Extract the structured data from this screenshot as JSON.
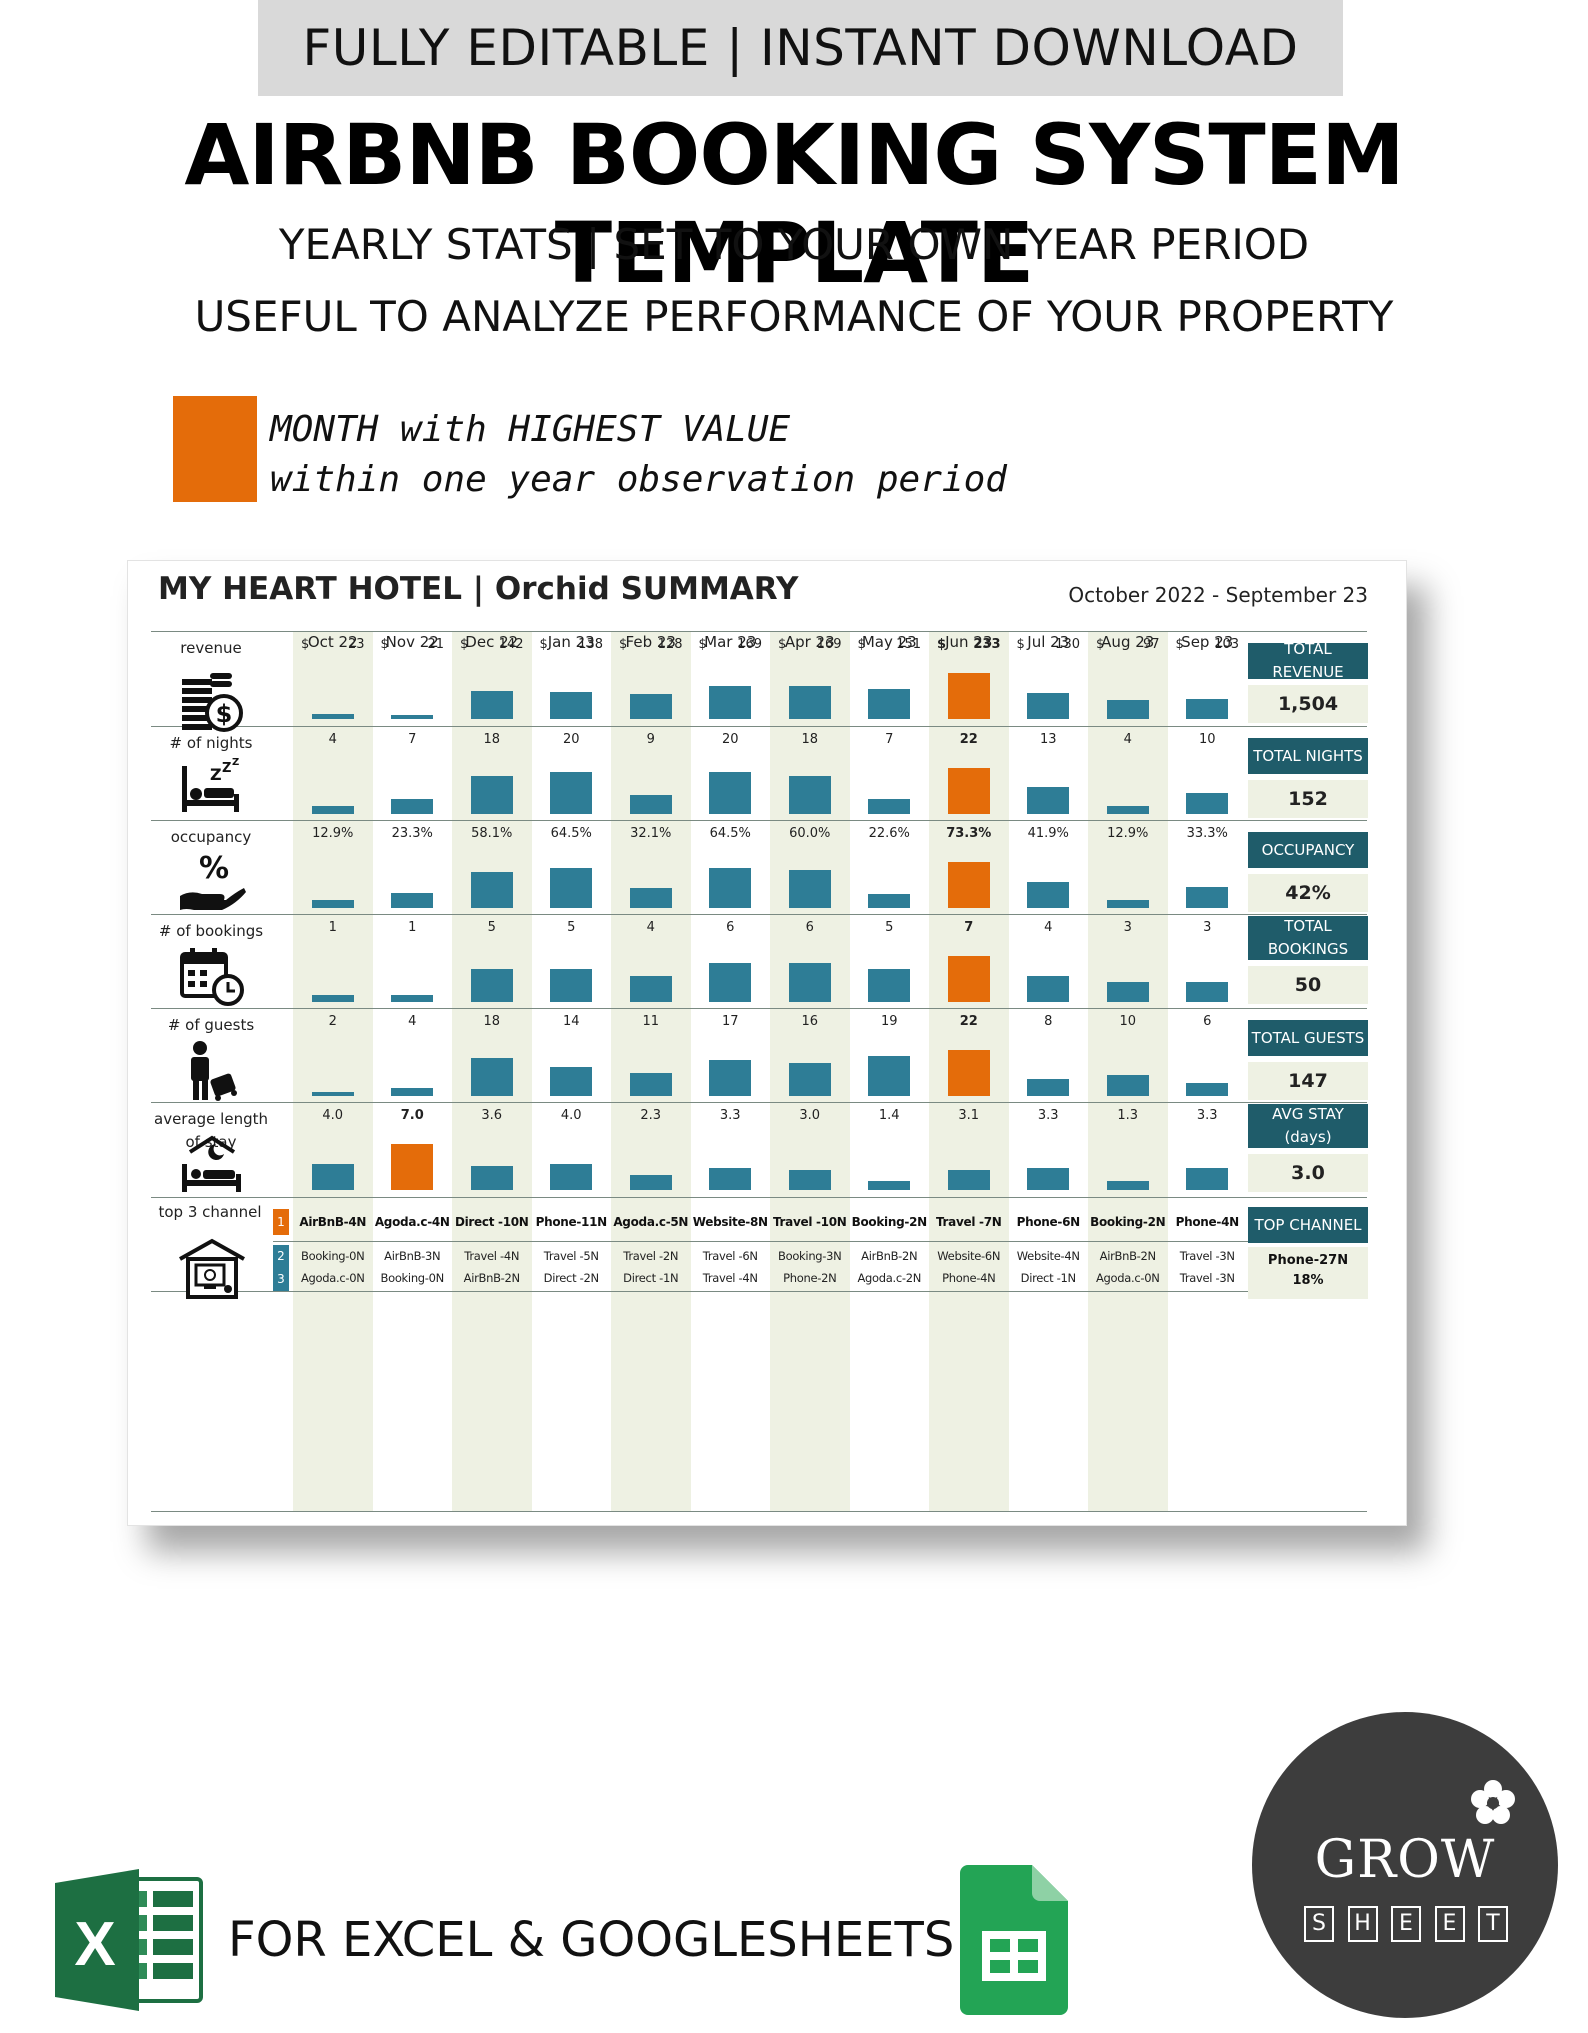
{
  "banner": "FULLY EDITABLE | INSTANT DOWNLOAD",
  "title": "AIRBNB BOOKING SYSTEM TEMPLATE",
  "subtitle1": "YEARLY STATS | SET TO YOUR OWN YEAR PERIOD",
  "subtitle2": "USEFUL TO ANALYZE PERFORMANCE OF YOUR PROPERTY",
  "legend": {
    "color": "#e46c0a",
    "line1": "MONTH with HIGHEST VALUE",
    "line2": "within one year observation period"
  },
  "footer": {
    "text": "FOR EXCEL & GOOGLESHEETS",
    "excel_icon": "excel-icon",
    "sheets_icon": "google-sheets-icon",
    "brand_word": "GROW",
    "brand_letters": [
      "S",
      "H",
      "E",
      "E",
      "T"
    ]
  },
  "chart_data": {
    "type": "bar",
    "title": "MY HEART HOTEL | Orchid SUMMARY",
    "period": "October 2022 - September 23",
    "colors": {
      "bar": "#2e7d96",
      "highlight": "#e46c0a",
      "header": "#1f5c6a",
      "shade": "#eef1e3"
    },
    "categories": [
      "Oct 22",
      "Nov 22",
      "Dec 22",
      "Jan 23",
      "Feb 23",
      "Mar 23",
      "Apr 23",
      "May 23",
      "Jun 23",
      "Jul 23",
      "Aug 23",
      "Sep 23"
    ],
    "currency_symbol": "$",
    "series": [
      {
        "key": "revenue",
        "name": "revenue",
        "icon": "money-icon",
        "values": [
          23,
          21,
          142,
          138,
          128,
          169,
          169,
          151,
          233,
          130,
          97,
          103
        ],
        "labels": [
          "23",
          "21",
          "142",
          "138",
          "128",
          "169",
          "169",
          "151",
          "233",
          "130",
          "97",
          "103"
        ],
        "highlight": 8,
        "currency": true,
        "total_label": "TOTAL REVENUE",
        "total_value": "1,504"
      },
      {
        "key": "nights",
        "name": "# of nights",
        "icon": "bed-sleep-icon",
        "values": [
          4,
          7,
          18,
          20,
          9,
          20,
          18,
          7,
          22,
          13,
          4,
          10
        ],
        "labels": [
          "4",
          "7",
          "18",
          "20",
          "9",
          "20",
          "18",
          "7",
          "22",
          "13",
          "4",
          "10"
        ],
        "highlight": 8,
        "total_label": "TOTAL NIGHTS",
        "total_value": "152"
      },
      {
        "key": "occupancy",
        "name": "occupancy",
        "icon": "percent-hand-icon",
        "values": [
          12.9,
          23.3,
          58.1,
          64.5,
          32.1,
          64.5,
          60.0,
          22.6,
          73.3,
          41.9,
          12.9,
          33.3
        ],
        "labels": [
          "12.9%",
          "23.3%",
          "58.1%",
          "64.5%",
          "32.1%",
          "64.5%",
          "60.0%",
          "22.6%",
          "73.3%",
          "41.9%",
          "12.9%",
          "33.3%"
        ],
        "highlight": 8,
        "total_label": "OCCUPANCY",
        "total_value": "42%"
      },
      {
        "key": "bookings",
        "name": "# of bookings",
        "icon": "calendar-clock-icon",
        "values": [
          1,
          1,
          5,
          5,
          4,
          6,
          6,
          5,
          7,
          4,
          3,
          3
        ],
        "labels": [
          "1",
          "1",
          "5",
          "5",
          "4",
          "6",
          "6",
          "5",
          "7",
          "4",
          "3",
          "3"
        ],
        "highlight": 8,
        "total_label": "TOTAL BOOKINGS",
        "total_value": "50"
      },
      {
        "key": "guests",
        "name": "# of guests",
        "icon": "traveler-luggage-icon",
        "values": [
          2,
          4,
          18,
          14,
          11,
          17,
          16,
          19,
          22,
          8,
          10,
          6
        ],
        "labels": [
          "2",
          "4",
          "18",
          "14",
          "11",
          "17",
          "16",
          "19",
          "22",
          "8",
          "10",
          "6"
        ],
        "highlight": 8,
        "total_label": "TOTAL GUESTS",
        "total_value": "147"
      },
      {
        "key": "stay",
        "name": "average length of stay",
        "icon": "night-bed-icon",
        "values": [
          4.0,
          7.0,
          3.6,
          4.0,
          2.3,
          3.3,
          3.0,
          1.4,
          3.1,
          3.3,
          1.3,
          3.3
        ],
        "labels": [
          "4.0",
          "7.0",
          "3.6",
          "4.0",
          "2.3",
          "3.3",
          "3.0",
          "1.4",
          "3.1",
          "3.3",
          "1.3",
          "3.3"
        ],
        "highlight": 1,
        "total_label": "AVG STAY (days)",
        "total_value": "3.0"
      }
    ],
    "channels": {
      "name": "top 3 channel",
      "icon": "booking-screen-icon",
      "ranks": [
        "1",
        "2",
        "3"
      ],
      "first": [
        "AirBnB-4N",
        "Agoda.c-4N",
        "Direct -10N",
        "Phone-11N",
        "Agoda.c-5N",
        "Website-8N",
        "Travel -10N",
        "Booking-2N",
        "Travel -7N",
        "Phone-6N",
        "Booking-2N",
        "Phone-4N"
      ],
      "second": [
        "Booking-0N",
        "AirBnB-3N",
        "Travel -4N",
        "Travel -5N",
        "Travel -2N",
        "Travel -6N",
        "Booking-3N",
        "AirBnB-2N",
        "Website-6N",
        "Website-4N",
        "AirBnB-2N",
        "Travel -3N"
      ],
      "third": [
        "Agoda.c-0N",
        "Booking-0N",
        "AirBnB-2N",
        "Direct -2N",
        "Direct -1N",
        "Travel -4N",
        "Phone-2N",
        "Agoda.c-2N",
        "Phone-4N",
        "Direct -1N",
        "Agoda.c-0N",
        "Travel -3N"
      ],
      "total_label": "TOP CHANNEL",
      "total_value_line1": "Phone-27N",
      "total_value_line2": "18%"
    }
  }
}
